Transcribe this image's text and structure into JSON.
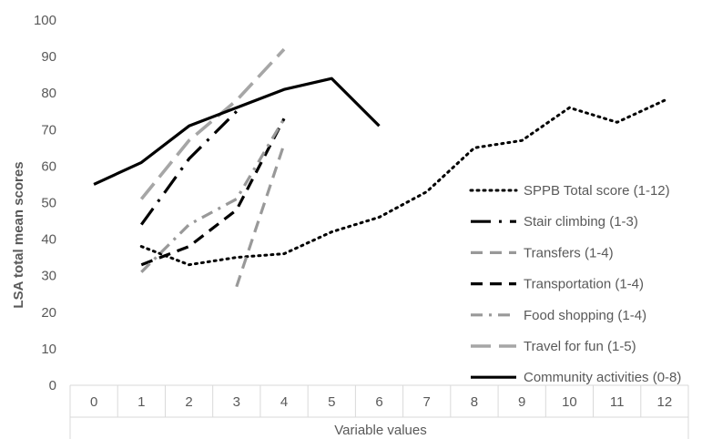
{
  "chart_data": {
    "type": "line",
    "xlabel": "Variable values",
    "ylabel": "LSA total mean scores",
    "ylim": [
      0,
      100
    ],
    "yticks": [
      0,
      10,
      20,
      30,
      40,
      50,
      60,
      70,
      80,
      90,
      100
    ],
    "categories": [
      "0",
      "1",
      "2",
      "3",
      "4",
      "5",
      "6",
      "7",
      "8",
      "9",
      "10",
      "11",
      "12"
    ],
    "grid": false,
    "legend_position": "right",
    "series": [
      {
        "name": "SPPB Total score (1-12)",
        "style": "dotted",
        "color": "#000000",
        "x": [
          1,
          2,
          3,
          4,
          5,
          6,
          7,
          8,
          9,
          10,
          11,
          12
        ],
        "values": [
          38,
          33,
          35,
          36,
          42,
          46,
          53,
          65,
          67,
          76,
          72,
          78
        ]
      },
      {
        "name": "Stair climbing (1-3)",
        "style": "longdash-dot",
        "color": "#000000",
        "x": [
          1,
          2,
          3
        ],
        "values": [
          44,
          62,
          75
        ]
      },
      {
        "name": "Transfers (1-4)",
        "style": "dash",
        "color": "#999999",
        "x": [
          3,
          4
        ],
        "values": [
          27,
          66
        ]
      },
      {
        "name": "Transportation (1-4)",
        "style": "dash",
        "color": "#000000",
        "x": [
          1,
          2,
          3,
          4
        ],
        "values": [
          33,
          38,
          48,
          73
        ]
      },
      {
        "name": "Food shopping (1-4)",
        "style": "dash-dot",
        "color": "#999999",
        "x": [
          1,
          2,
          3,
          4
        ],
        "values": [
          31,
          44,
          51,
          73
        ]
      },
      {
        "name": "Travel for fun (1-5)",
        "style": "longdash",
        "color": "#a6a6a6",
        "x": [
          1,
          2,
          3,
          4
        ],
        "values": [
          51,
          67,
          78,
          92
        ]
      },
      {
        "name": "Community activities (0-8)",
        "style": "solid",
        "color": "#000000",
        "x": [
          0,
          1,
          2,
          3,
          4,
          5,
          6
        ],
        "values": [
          55,
          61,
          71,
          76,
          81,
          84,
          71
        ]
      }
    ]
  }
}
